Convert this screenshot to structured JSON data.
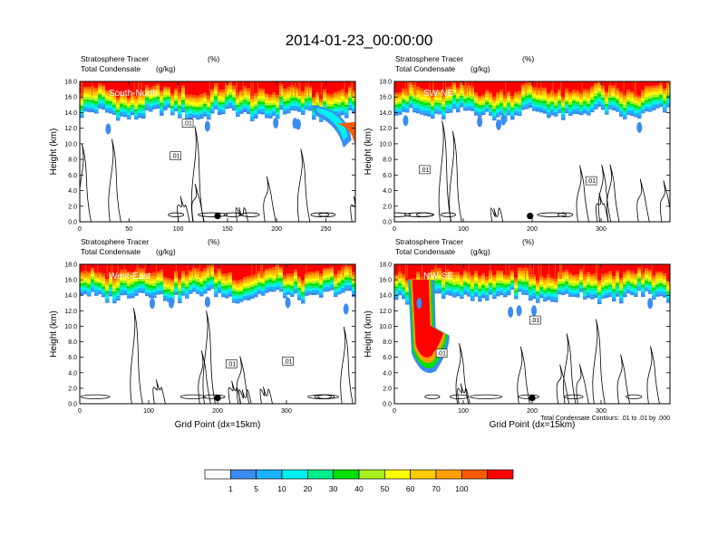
{
  "title": "2014-01-23_00:00:00",
  "panel_header": {
    "line1_name": "Stratosphere Tracer",
    "line1_unit": "(%)",
    "line2_name": "Total Condensate",
    "line2_unit": "(g/kg)"
  },
  "ylabel": "Height (km)",
  "xlabel": "Grid Point (dx=15km)",
  "contour_note": "Total Condensate Contours: .01 to .01 by .000",
  "contour_label": ".01",
  "y_ticks": [
    "0.0",
    "2.0",
    "4.0",
    "6.0",
    "8.0",
    "10.0",
    "12.0",
    "14.0",
    "16.0",
    "18.0"
  ],
  "colorbar": {
    "colors": [
      "#ffffff",
      "#3a8cf0",
      "#19b3ff",
      "#00f0f0",
      "#00ee88",
      "#00e000",
      "#a8f020",
      "#ffff00",
      "#ffcc00",
      "#ffa000",
      "#ff5a00",
      "#ff0000"
    ],
    "labels": [
      "1",
      "5",
      "10",
      "20",
      "30",
      "40",
      "50",
      "60",
      "70",
      "100"
    ]
  },
  "chart_data": [
    {
      "type": "heatmap",
      "title": "South-North",
      "xlim": [
        0,
        280
      ],
      "x_ticks": [
        0,
        50,
        100,
        150,
        200,
        250
      ],
      "ylim": [
        0,
        18
      ],
      "marker_x": 140,
      "tracer_base_km": 15.3
    },
    {
      "type": "heatmap",
      "title": "SW-NE",
      "xlim": [
        0,
        400
      ],
      "x_ticks": [
        0,
        100,
        200,
        300
      ],
      "ylim": [
        0,
        18
      ],
      "marker_x": 197,
      "tracer_base_km": 15.4
    },
    {
      "type": "heatmap",
      "title": "West-East",
      "xlim": [
        0,
        400
      ],
      "x_ticks": [
        0,
        100,
        200,
        300
      ],
      "ylim": [
        0,
        18
      ],
      "marker_x": 200,
      "tracer_base_km": 15.5
    },
    {
      "type": "heatmap",
      "title": "NW-SE",
      "xlim": [
        0,
        400
      ],
      "x_ticks": [
        0,
        100,
        200,
        300
      ],
      "ylim": [
        0,
        18
      ],
      "marker_x": 200,
      "tracer_base_km": 15.3
    }
  ]
}
